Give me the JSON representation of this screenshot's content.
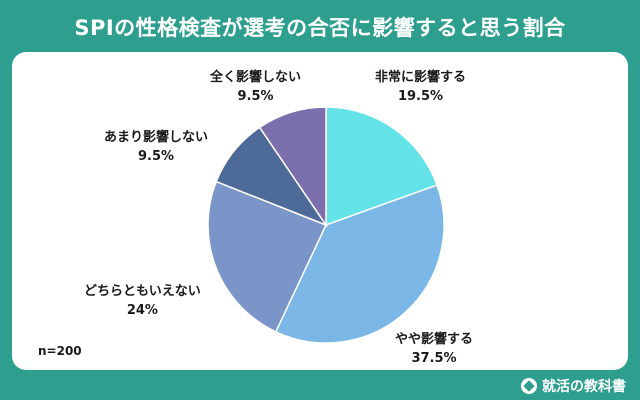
{
  "title": "SPIの性格検査が選考の合否に影響すると思う割合",
  "sample_size": "n=200",
  "brand": "就活の教科書",
  "chart_data": {
    "type": "pie",
    "title": "SPIの性格検査が選考の合否に影響すると思う割合",
    "slices": [
      {
        "label": "非常に影響する",
        "value": 19.5,
        "value_label": "19.5%",
        "color": "#63e2e8"
      },
      {
        "label": "やや影響する",
        "value": 37.5,
        "value_label": "37.5%",
        "color": "#7ab6e6"
      },
      {
        "label": "どちらともいえない",
        "value": 24,
        "value_label": "24%",
        "color": "#7b95c9"
      },
      {
        "label": "あまり影響しない",
        "value": 9.5,
        "value_label": "9.5%",
        "color": "#4d6a99"
      },
      {
        "label": "全く影響しない",
        "value": 9.5,
        "value_label": "9.5%",
        "color": "#7b6fae"
      }
    ],
    "start": "12 o'clock",
    "direction": "clockwise"
  }
}
